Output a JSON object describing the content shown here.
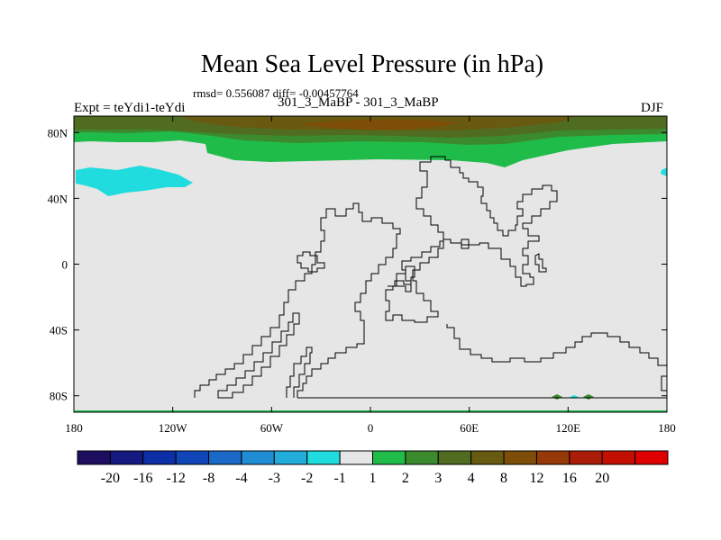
{
  "figure": {
    "title": "Mean Sea Level Pressure (in hPa)",
    "stats": "rmsd= 0.556087 diff= -0.00457764",
    "left_label": "Expt = teYdi1-teYdi",
    "center_label": "301_3_MaBP - 301_3_MaBP",
    "right_label": "DJF"
  },
  "map": {
    "lat_ticks": [
      {
        "value": 80,
        "label": "80N"
      },
      {
        "value": 40,
        "label": "40N"
      },
      {
        "value": 0,
        "label": "0"
      },
      {
        "value": -40,
        "label": "40S"
      },
      {
        "value": -80,
        "label": "80S"
      }
    ],
    "lon_ticks": [
      {
        "value": -180,
        "label": "180"
      },
      {
        "value": -120,
        "label": "120W"
      },
      {
        "value": -60,
        "label": "60W"
      },
      {
        "value": 0,
        "label": "0"
      },
      {
        "value": 60,
        "label": "60E"
      },
      {
        "value": 120,
        "label": "120E"
      },
      {
        "value": 180,
        "label": "180"
      }
    ],
    "background_color": "#e6e6e6"
  },
  "colorbar": {
    "colors": [
      "#1e0e5f",
      "#141a80",
      "#0c2ea6",
      "#1046b8",
      "#1a68c8",
      "#208ed4",
      "#22acda",
      "#20dcde",
      "#e6e6e6",
      "#20bc4a",
      "#3c8a2e",
      "#506c20",
      "#685a10",
      "#7e4e08",
      "#963808",
      "#aa1c08",
      "#c40e00",
      "#e00000"
    ],
    "labels": [
      "-20",
      "-16",
      "-12",
      "-8",
      "-4",
      "-3",
      "-2",
      "-1",
      "1",
      "2",
      "3",
      "4",
      "8",
      "12",
      "16",
      "20"
    ]
  }
}
